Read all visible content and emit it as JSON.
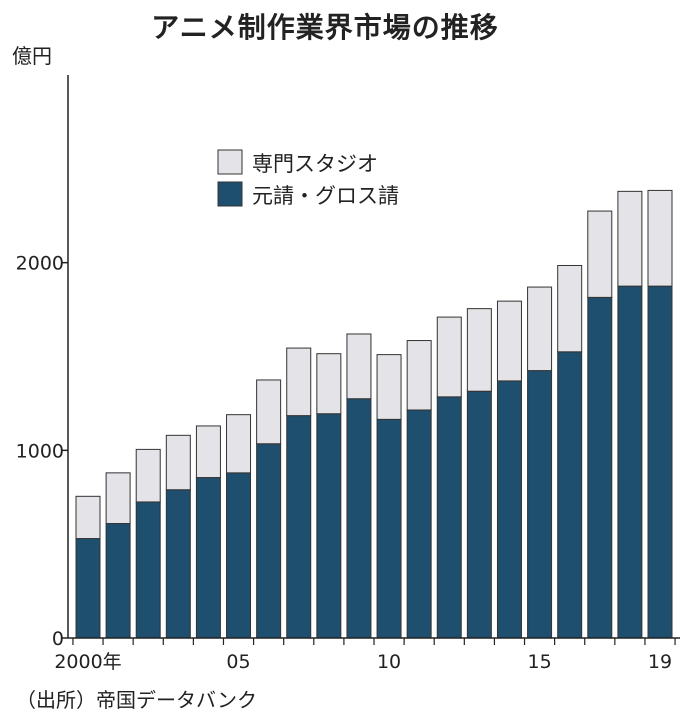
{
  "title": "アニメ制作業界市場の推移",
  "unit": "億円",
  "source": "（出所）帝国データバンク",
  "colors": {
    "studio": "#e4e4e8",
    "contract": "#1f4f6e",
    "outline": "#333333",
    "axis": "#222222"
  },
  "chart_data": {
    "type": "bar",
    "stacked": true,
    "categories": [
      "2000",
      "2001",
      "2002",
      "2003",
      "2004",
      "2005",
      "2006",
      "2007",
      "2008",
      "2009",
      "2010",
      "2011",
      "2012",
      "2013",
      "2014",
      "2015",
      "2016",
      "2017",
      "2018",
      "2019"
    ],
    "series": [
      {
        "name": "元請・グロス請",
        "values": [
          530,
          610,
          725,
          790,
          855,
          880,
          1035,
          1185,
          1195,
          1275,
          1165,
          1215,
          1285,
          1315,
          1370,
          1425,
          1525,
          1815,
          1875,
          1875
        ]
      },
      {
        "name": "専門スタジオ",
        "values": [
          225,
          270,
          280,
          290,
          275,
          310,
          340,
          360,
          320,
          345,
          345,
          370,
          425,
          440,
          425,
          445,
          460,
          460,
          505,
          510
        ]
      }
    ],
    "totals": [
      755,
      880,
      1005,
      1080,
      1130,
      1190,
      1375,
      1545,
      1515,
      1620,
      1510,
      1585,
      1710,
      1755,
      1795,
      1870,
      1985,
      2275,
      2380,
      2385
    ],
    "ylim": [
      0,
      3000
    ],
    "yticks": [
      0,
      1000,
      2000
    ],
    "xtick_labels": [
      {
        "index": 0,
        "label": "2000年"
      },
      {
        "index": 5,
        "label": "05"
      },
      {
        "index": 10,
        "label": "10"
      },
      {
        "index": 15,
        "label": "15"
      },
      {
        "index": 19,
        "label": "19"
      }
    ],
    "legend": [
      "専門スタジオ",
      "元請・グロス請"
    ],
    "legend_position": "top-left"
  }
}
